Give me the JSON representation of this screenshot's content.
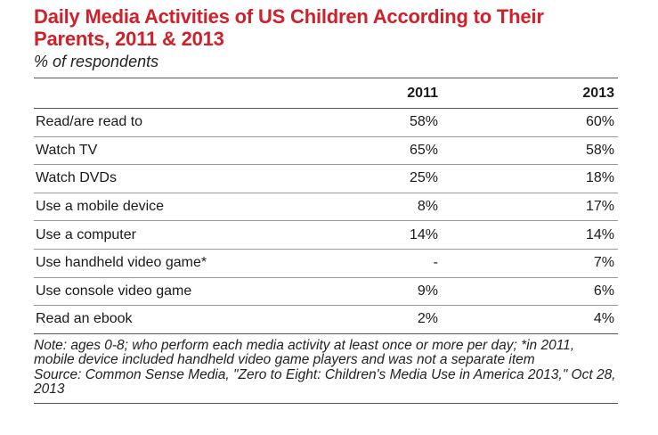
{
  "header": {
    "title": "Daily Media Activities of US Children According to Their Parents, 2011 & 2013",
    "subtitle": "% of respondents"
  },
  "chart_data": {
    "type": "table",
    "title": "Daily Media Activities of US Children According to Their Parents, 2011 & 2013",
    "subtitle": "% of respondents",
    "columns": [
      "",
      "2011",
      "2013"
    ],
    "rows": [
      {
        "label": "Read/are read to",
        "y2011": "58%",
        "y2013": "60%"
      },
      {
        "label": "Watch TV",
        "y2011": "65%",
        "y2013": "58%"
      },
      {
        "label": "Watch DVDs",
        "y2011": "25%",
        "y2013": "18%"
      },
      {
        "label": "Use a mobile device",
        "y2011": "8%",
        "y2013": "17%"
      },
      {
        "label": "Use a computer",
        "y2011": "14%",
        "y2013": "14%"
      },
      {
        "label": "Use handheld video game*",
        "y2011": "-",
        "y2013": "7%"
      },
      {
        "label": "Use console video game",
        "y2011": "9%",
        "y2013": "6%"
      },
      {
        "label": "Read an ebook",
        "y2011": "2%",
        "y2013": "4%"
      }
    ]
  },
  "notes": {
    "note": "Note: ages 0-8; who perform each media activity at least once or more per day; *in 2011, mobile device included handheld video game players and was not a separate item",
    "source": "Source: Common Sense Media, \"Zero to Eight: Children's Media Use in America 2013,\" Oct 28, 2013"
  },
  "colors": {
    "title": "#d0202a",
    "text": "#1a1a1a",
    "rule": "#555555"
  }
}
